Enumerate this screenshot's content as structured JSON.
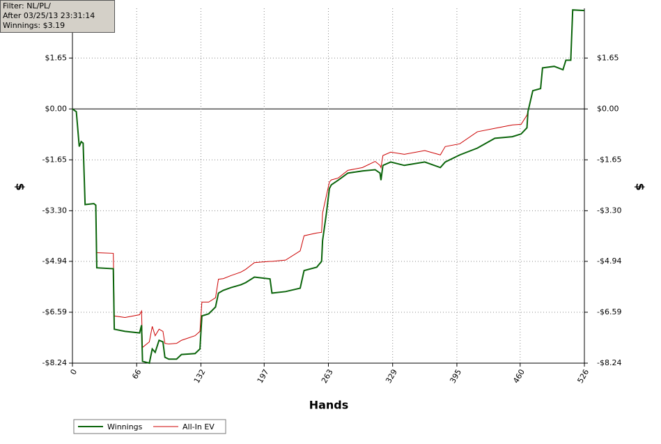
{
  "chart_data": {
    "type": "line",
    "x_label": "Hands",
    "y_label": "$",
    "y2_label": "$",
    "annotations": [
      "Filter: NL/PL/",
      "After 03/25/13 23:31:14",
      "Winnings: $3.19"
    ],
    "x": [
      0,
      4,
      7,
      9,
      11,
      13,
      22,
      24,
      25,
      42,
      43,
      54,
      69,
      71,
      72,
      79,
      82,
      85,
      89,
      93,
      95,
      99,
      107,
      112,
      126,
      131,
      133,
      140,
      147,
      150,
      155,
      163,
      173,
      178,
      187,
      203,
      205,
      219,
      234,
      238,
      251,
      256,
      257,
      261,
      264,
      266,
      273,
      283,
      298,
      311,
      316,
      317,
      319,
      327,
      341,
      362,
      378,
      383,
      398,
      416,
      434,
      452,
      461,
      467,
      468,
      473,
      481,
      483,
      495,
      504,
      507,
      512,
      514,
      526
    ],
    "series": [
      {
        "name": "Winnings",
        "color": "#0a640a",
        "values": [
          0,
          -0.09,
          -1.22,
          -1.06,
          -1.11,
          -3.1,
          -3.07,
          -3.12,
          -5.15,
          -5.18,
          -7.14,
          -7.21,
          -7.26,
          -7.01,
          -8.18,
          -8.24,
          -7.78,
          -7.89,
          -7.5,
          -7.55,
          -8.05,
          -8.11,
          -8.11,
          -7.96,
          -7.93,
          -7.78,
          -6.71,
          -6.64,
          -6.42,
          -5.97,
          -5.88,
          -5.79,
          -5.7,
          -5.63,
          -5.45,
          -5.51,
          -5.97,
          -5.92,
          -5.81,
          -5.24,
          -5.13,
          -4.94,
          -4.27,
          -3.37,
          -2.58,
          -2.46,
          -2.31,
          -2.08,
          -2.01,
          -1.97,
          -2.08,
          -2.31,
          -1.83,
          -1.72,
          -1.83,
          -1.72,
          -1.9,
          -1.72,
          -1.49,
          -1.27,
          -0.95,
          -0.9,
          -0.81,
          -0.61,
          -0.09,
          0.59,
          0.66,
          1.33,
          1.38,
          1.27,
          1.58,
          1.58,
          3.21,
          3.19
        ]
      },
      {
        "name": "All-In EV",
        "color": "#cc0000",
        "values": [
          0,
          -0.09,
          -1.22,
          -1.06,
          -1.11,
          -3.1,
          -3.07,
          -3.12,
          -4.66,
          -4.68,
          -6.71,
          -6.76,
          -6.67,
          -6.55,
          -7.73,
          -7.55,
          -7.05,
          -7.35,
          -7.14,
          -7.21,
          -7.6,
          -7.62,
          -7.6,
          -7.5,
          -7.35,
          -7.21,
          -6.26,
          -6.26,
          -6.12,
          -5.52,
          -5.5,
          -5.4,
          -5.29,
          -5.2,
          -4.98,
          -4.94,
          -4.94,
          -4.9,
          -4.6,
          -4.11,
          -4.02,
          -4.0,
          -3.37,
          -2.8,
          -2.37,
          -2.3,
          -2.24,
          -1.99,
          -1.9,
          -1.7,
          -1.83,
          -1.9,
          -1.51,
          -1.4,
          -1.47,
          -1.35,
          -1.49,
          -1.22,
          -1.13,
          -0.74,
          -0.63,
          -0.52,
          -0.5,
          -0.2,
          -0.09,
          0.59,
          0.66,
          1.33,
          1.38,
          1.27,
          1.58,
          1.58,
          3.21,
          3.19
        ]
      }
    ],
    "xlim": [
      0,
      526
    ],
    "xticks": [
      0,
      66,
      132,
      197,
      263,
      329,
      395,
      460,
      526
    ],
    "ylim": [
      -8.24,
      3.26
    ],
    "yticks": [
      {
        "value": -8.24,
        "label": "-$8.24"
      },
      {
        "value": -6.59,
        "label": "-$6.59"
      },
      {
        "value": -4.94,
        "label": "-$4.94"
      },
      {
        "value": -3.3,
        "label": "-$3.30"
      },
      {
        "value": -1.65,
        "label": "-$1.65"
      },
      {
        "value": 0,
        "label": "$0.00"
      },
      {
        "value": 1.65,
        "label": "$1.65"
      }
    ],
    "y2lim": [
      -8.24,
      3.26
    ],
    "y2ticks": [
      {
        "value": -8.24,
        "label": "-$8.24"
      },
      {
        "value": -6.59,
        "label": "-$6.59"
      },
      {
        "value": -4.94,
        "label": "-$4.94"
      },
      {
        "value": -3.3,
        "label": "-$3.30"
      },
      {
        "value": -1.65,
        "label": "-$1.65"
      },
      {
        "value": 0,
        "label": "$0.00"
      },
      {
        "value": 1.65,
        "label": "$1.65"
      }
    ],
    "grid": true,
    "legend": "bottom-left"
  }
}
